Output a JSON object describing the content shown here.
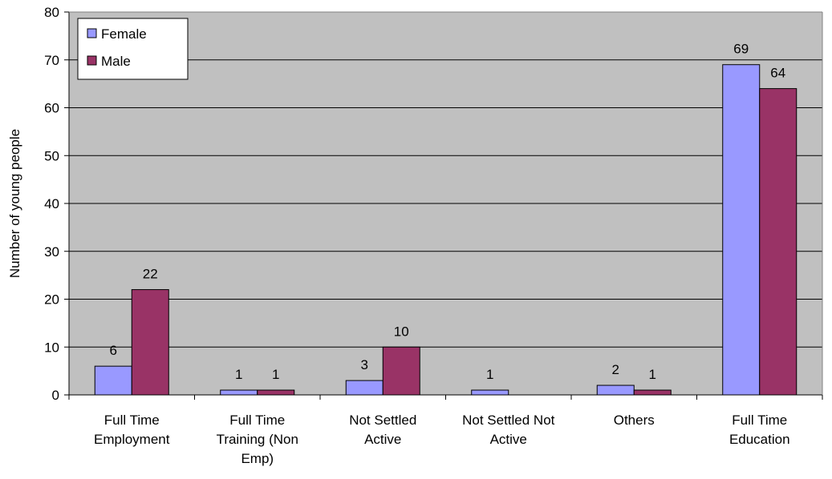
{
  "chart_data": {
    "type": "bar",
    "title": "",
    "xlabel": "",
    "ylabel": "Number of young people",
    "ylim": [
      0,
      80
    ],
    "yticks": [
      0,
      10,
      20,
      30,
      40,
      50,
      60,
      70,
      80
    ],
    "grid": true,
    "legend": "top-left",
    "background": "#c0c0c0",
    "categories": [
      [
        "Full Time",
        "Employment"
      ],
      [
        "Full Time",
        "Training (Non",
        "Emp)"
      ],
      [
        "Not Settled",
        "Active"
      ],
      [
        "Not Settled Not",
        "Active"
      ],
      [
        "Others"
      ],
      [
        "Full Time",
        "Education"
      ]
    ],
    "series": [
      {
        "name": "Female",
        "color": "#9999ff",
        "values": [
          6,
          1,
          3,
          1,
          2,
          69
        ]
      },
      {
        "name": "Male",
        "color": "#993366",
        "values": [
          22,
          1,
          10,
          null,
          1,
          64
        ]
      }
    ]
  }
}
